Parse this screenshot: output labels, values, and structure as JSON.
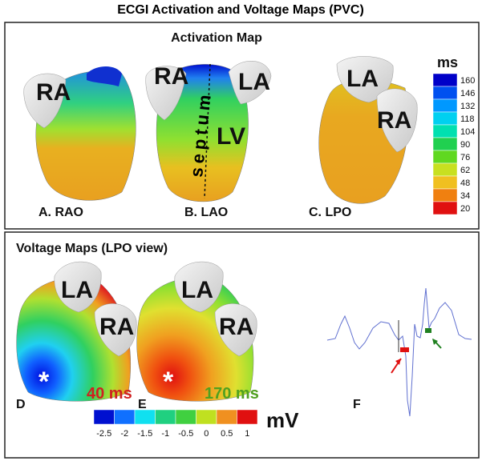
{
  "title": "ECGI Activation and Voltage Maps (PVC)",
  "activation": {
    "title": "Activation Map",
    "panels": [
      {
        "label": "A. RAO",
        "regions": [
          "RA"
        ]
      },
      {
        "label": "B. LAO",
        "regions": [
          "RA",
          "LA",
          "LV",
          "septum"
        ]
      },
      {
        "label": "C. LPO",
        "regions": [
          "LA",
          "RA"
        ]
      }
    ],
    "colorbar": {
      "unit": "ms",
      "ticks": [
        160,
        146,
        132,
        118,
        104,
        90,
        76,
        62,
        48,
        34,
        20
      ]
    }
  },
  "voltage": {
    "title": "Voltage Maps (LPO view)",
    "panels": [
      {
        "label": "D",
        "regions": [
          "LA",
          "RA"
        ],
        "marker": "*",
        "time": "40 ms"
      },
      {
        "label": "E",
        "regions": [
          "LA",
          "RA"
        ],
        "marker": "*",
        "time": "170 ms"
      },
      {
        "label": "F"
      }
    ],
    "colorbar": {
      "unit": "mV",
      "ticks": [
        -2.5,
        -2,
        -1.5,
        -1,
        -0.5,
        0,
        0.5,
        1
      ]
    }
  }
}
